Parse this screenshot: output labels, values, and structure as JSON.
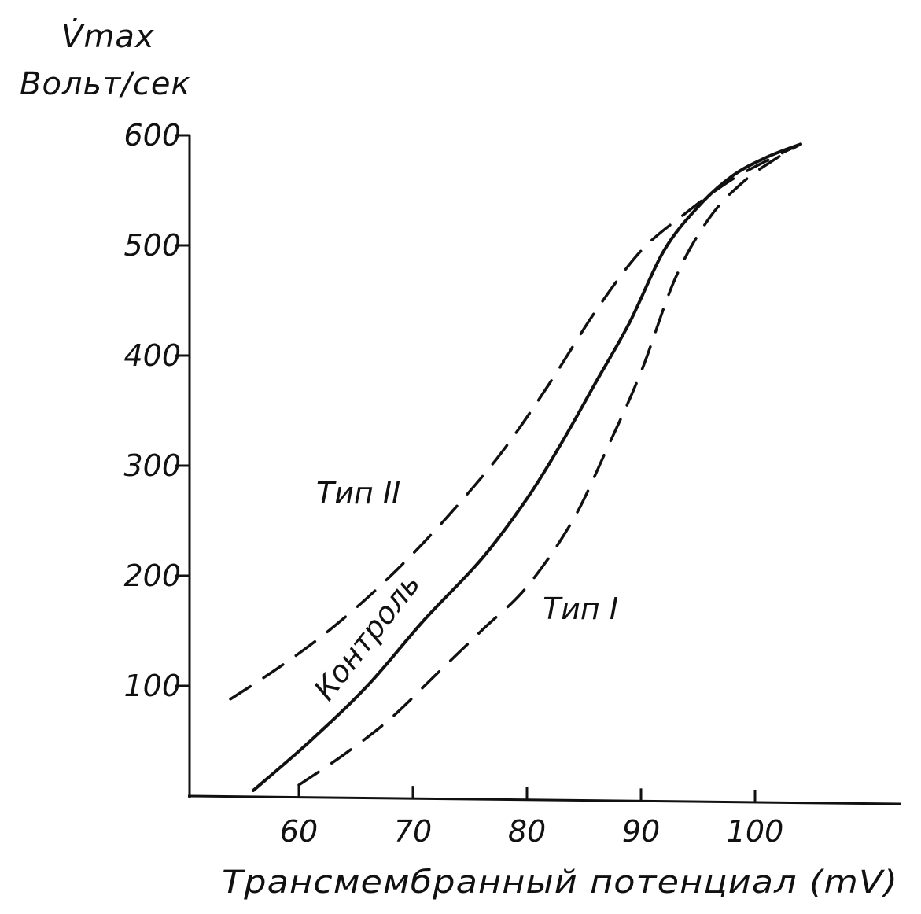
{
  "chart_data": {
    "type": "line",
    "ylabel_line1": "V̇max",
    "ylabel_line2": "Вольт/сек",
    "xlabel": "Трансмембранный потенциал (mV)",
    "xlim": [
      50,
      113
    ],
    "ylim": [
      0,
      600
    ],
    "x_ticks": [
      60,
      70,
      80,
      90,
      100
    ],
    "y_ticks": [
      100,
      200,
      300,
      400,
      500,
      600
    ],
    "grid": false,
    "series": [
      {
        "name": "Контроль",
        "style": "solid",
        "x": [
          56,
          61,
          66,
          71,
          76,
          80,
          83,
          86,
          89,
          92,
          95,
          98,
          101,
          104
        ],
        "y": [
          5,
          50,
          100,
          160,
          215,
          270,
          320,
          375,
          430,
          495,
          535,
          563,
          580,
          592
        ]
      },
      {
        "name": "Тип II",
        "style": "dashed",
        "x": [
          54,
          58,
          62,
          66,
          70,
          74,
          78,
          82,
          86,
          90,
          94,
          98,
          102,
          104
        ],
        "y": [
          88,
          115,
          145,
          180,
          220,
          265,
          315,
          375,
          440,
          495,
          530,
          560,
          582,
          592
        ]
      },
      {
        "name": "Тип I",
        "style": "dashed",
        "x": [
          60,
          64,
          68,
          72,
          76,
          80,
          84,
          87,
          90,
          93,
          96,
          99,
          102,
          104
        ],
        "y": [
          10,
          38,
          70,
          110,
          150,
          190,
          250,
          315,
          385,
          470,
          525,
          558,
          580,
          592
        ]
      }
    ]
  }
}
